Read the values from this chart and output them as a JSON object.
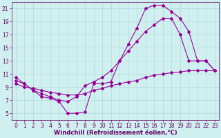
{
  "title": "",
  "xlabel": "Windchill (Refroidissement éolien,°C)",
  "ylabel": "",
  "background_color": "#d0f0f0",
  "grid_color": "#b0d8d8",
  "line_color": "#990099",
  "xlim": [
    -0.5,
    23.5
  ],
  "ylim": [
    4,
    22
  ],
  "yticks": [
    5,
    7,
    9,
    11,
    13,
    15,
    17,
    19,
    21
  ],
  "xticks": [
    0,
    1,
    2,
    3,
    4,
    5,
    6,
    7,
    8,
    9,
    10,
    11,
    12,
    13,
    14,
    15,
    16,
    17,
    18,
    19,
    20,
    21,
    22,
    23
  ],
  "line1_x": [
    0,
    1,
    2,
    3,
    4,
    5,
    6,
    7,
    8,
    9,
    10,
    11,
    12,
    13,
    14,
    15,
    16,
    17,
    18,
    19,
    20,
    21,
    22,
    23
  ],
  "line1_y": [
    10.5,
    9.5,
    8.5,
    7.5,
    7.3,
    6.8,
    5.0,
    5.0,
    5.2,
    9.5,
    9.5,
    9.8,
    13.0,
    15.5,
    18.0,
    21.0,
    21.5,
    21.5,
    20.5,
    19.5,
    17.5,
    13.0,
    13.0,
    11.5
  ],
  "line2_x": [
    0,
    1,
    2,
    3,
    4,
    5,
    6,
    7,
    8,
    9,
    10,
    11,
    12,
    13,
    14,
    15,
    16,
    17,
    18,
    19,
    20,
    21,
    22,
    23
  ],
  "line2_y": [
    10.0,
    9.5,
    8.5,
    8.0,
    7.5,
    7.0,
    6.8,
    7.5,
    9.2,
    9.8,
    10.5,
    11.5,
    13.0,
    14.5,
    16.0,
    17.5,
    18.5,
    19.5,
    19.5,
    17.0,
    13.0,
    13.0,
    13.0,
    11.5
  ],
  "line3_x": [
    0,
    1,
    2,
    3,
    4,
    5,
    6,
    7,
    8,
    9,
    10,
    11,
    12,
    13,
    14,
    15,
    16,
    17,
    18,
    19,
    20,
    21,
    22,
    23
  ],
  "line3_y": [
    9.5,
    9.0,
    8.8,
    8.5,
    8.2,
    8.0,
    7.8,
    7.8,
    8.0,
    8.5,
    8.8,
    9.2,
    9.5,
    9.8,
    10.0,
    10.5,
    10.8,
    11.0,
    11.2,
    11.3,
    11.5,
    11.5,
    11.5,
    11.5
  ],
  "font_size": 6,
  "tick_font_size": 5.5,
  "marker": "D",
  "marker_size": 2.0,
  "line_width": 0.8,
  "figsize": [
    3.2,
    2.0
  ],
  "dpi": 100
}
